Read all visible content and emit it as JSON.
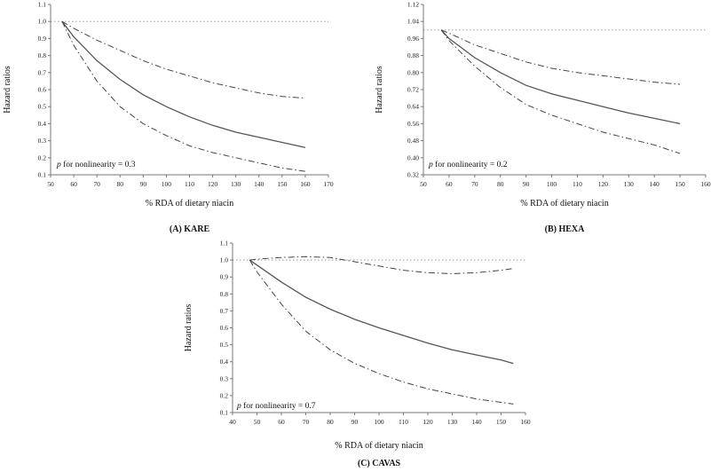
{
  "chart_data": [
    {
      "type": "line",
      "panel_label": "(A) KARE",
      "xlabel": "% RDA of dietary niacin",
      "ylabel": "Hazard ratios",
      "xlim": [
        50,
        170
      ],
      "ylim": [
        0.1,
        1.1
      ],
      "xticks": [
        "50",
        "60",
        "70",
        "80",
        "90",
        "100",
        "110",
        "120",
        "130",
        "140",
        "150",
        "160",
        "170"
      ],
      "yticks": [
        "0.1",
        "0.2",
        "0.3",
        "0.4",
        "0.5",
        "0.6",
        "0.7",
        "0.8",
        "0.9",
        "1.0",
        "1.1"
      ],
      "reference_line": 1.0,
      "annotation": {
        "italic": "p",
        "text": " for nonlinearity = 0.3"
      },
      "series": [
        {
          "style": "solid",
          "x": [
            55,
            60,
            70,
            80,
            90,
            100,
            110,
            120,
            130,
            140,
            150,
            160
          ],
          "y": [
            1.0,
            0.91,
            0.77,
            0.66,
            0.57,
            0.5,
            0.44,
            0.39,
            0.35,
            0.32,
            0.29,
            0.26
          ]
        },
        {
          "style": "dashdot",
          "x": [
            55,
            60,
            70,
            80,
            90,
            100,
            110,
            120,
            130,
            140,
            150,
            160
          ],
          "y": [
            1.0,
            0.96,
            0.89,
            0.83,
            0.77,
            0.72,
            0.68,
            0.64,
            0.61,
            0.58,
            0.56,
            0.55
          ]
        },
        {
          "style": "dashdot",
          "x": [
            55,
            60,
            70,
            80,
            90,
            100,
            110,
            120,
            130,
            140,
            150,
            160
          ],
          "y": [
            1.0,
            0.86,
            0.65,
            0.5,
            0.4,
            0.33,
            0.27,
            0.23,
            0.2,
            0.17,
            0.14,
            0.12
          ]
        }
      ]
    },
    {
      "type": "line",
      "panel_label": "(B) HEXA",
      "xlabel": "% RDA of dietary niacin",
      "ylabel": "Hazard ratios",
      "xlim": [
        50,
        160
      ],
      "ylim": [
        0.32,
        1.12
      ],
      "xticks": [
        "50",
        "60",
        "70",
        "80",
        "90",
        "100",
        "110",
        "120",
        "130",
        "140",
        "150",
        "160"
      ],
      "yticks": [
        "0.32",
        "0.40",
        "0.48",
        "0.56",
        "0.64",
        "0.72",
        "0.80",
        "0.88",
        "0.96",
        "1.04",
        "1.12"
      ],
      "reference_line": 1.0,
      "annotation": {
        "italic": "p",
        "text": " for nonlinearity = 0.2"
      },
      "series": [
        {
          "style": "solid",
          "x": [
            57,
            60,
            70,
            80,
            90,
            100,
            110,
            120,
            130,
            140,
            150
          ],
          "y": [
            1.0,
            0.96,
            0.87,
            0.8,
            0.74,
            0.7,
            0.67,
            0.64,
            0.61,
            0.585,
            0.56
          ]
        },
        {
          "style": "dashdot",
          "x": [
            57,
            60,
            70,
            80,
            90,
            100,
            110,
            120,
            130,
            140,
            150
          ],
          "y": [
            1.0,
            0.985,
            0.93,
            0.89,
            0.85,
            0.82,
            0.8,
            0.785,
            0.77,
            0.755,
            0.745
          ]
        },
        {
          "style": "dashdot",
          "x": [
            57,
            60,
            70,
            80,
            90,
            100,
            110,
            120,
            130,
            140,
            150
          ],
          "y": [
            1.0,
            0.95,
            0.83,
            0.73,
            0.65,
            0.6,
            0.56,
            0.52,
            0.49,
            0.46,
            0.42
          ]
        }
      ]
    },
    {
      "type": "line",
      "panel_label": "(C) CAVAS",
      "xlabel": "% RDA of dietary niacin",
      "ylabel": "Hazard ratios",
      "xlim": [
        40,
        160
      ],
      "ylim": [
        0.1,
        1.1
      ],
      "xticks": [
        "40",
        "50",
        "60",
        "70",
        "80",
        "90",
        "100",
        "110",
        "120",
        "130",
        "140",
        "150",
        "160"
      ],
      "yticks": [
        "0.1",
        "0.2",
        "0.3",
        "0.4",
        "0.5",
        "0.6",
        "0.7",
        "0.8",
        "0.9",
        "1.0",
        "1.1"
      ],
      "reference_line": 1.0,
      "annotation": {
        "italic": "p",
        "text": " for nonlinearity = 0.7"
      },
      "series": [
        {
          "style": "solid",
          "x": [
            47,
            50,
            60,
            70,
            80,
            90,
            100,
            110,
            120,
            130,
            140,
            150,
            155
          ],
          "y": [
            1.0,
            0.97,
            0.87,
            0.78,
            0.71,
            0.65,
            0.6,
            0.555,
            0.51,
            0.47,
            0.44,
            0.41,
            0.39
          ]
        },
        {
          "style": "dashdot",
          "x": [
            47,
            50,
            60,
            70,
            80,
            90,
            100,
            110,
            120,
            130,
            140,
            150,
            155
          ],
          "y": [
            1.0,
            1.005,
            1.015,
            1.02,
            1.015,
            0.99,
            0.965,
            0.94,
            0.925,
            0.92,
            0.925,
            0.94,
            0.95
          ]
        },
        {
          "style": "dashdot",
          "x": [
            47,
            50,
            60,
            70,
            80,
            90,
            100,
            110,
            120,
            130,
            140,
            150,
            155
          ],
          "y": [
            1.0,
            0.93,
            0.74,
            0.58,
            0.47,
            0.39,
            0.33,
            0.28,
            0.24,
            0.21,
            0.18,
            0.16,
            0.15
          ]
        }
      ]
    }
  ]
}
